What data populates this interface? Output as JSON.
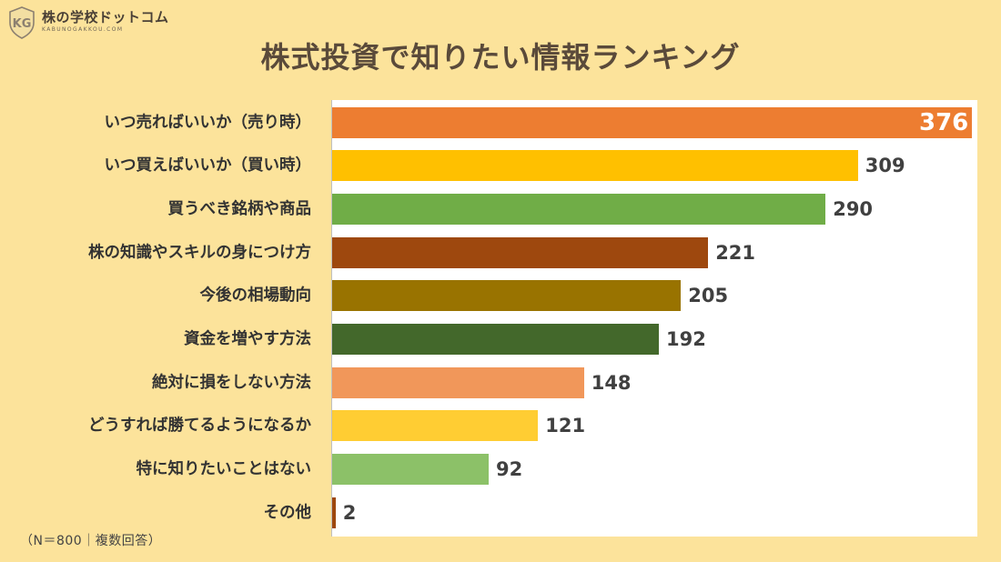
{
  "logo": {
    "mark": "KG",
    "name": "株の学校ドットコム",
    "subtitle": "KABUNOGAKKOU.COM"
  },
  "chart_data": {
    "type": "bar",
    "orientation": "horizontal",
    "title": "株式投資で知りたい情報ランキング",
    "categories": [
      "いつ売ればいいか（売り時）",
      "いつ買えばいいか（買い時）",
      "買うべき銘柄や商品",
      "株の知識やスキルの身につけ方",
      "今後の相場動向",
      "資金を増やす方法",
      "絶対に損をしない方法",
      "どうすれば勝てるようになるか",
      "特に知りたいことはない",
      "その他"
    ],
    "values": [
      376,
      309,
      290,
      221,
      205,
      192,
      148,
      121,
      92,
      2
    ],
    "labels": [
      "376",
      "309",
      "290",
      "221",
      "205",
      "192",
      "148",
      "121",
      "92",
      "2"
    ],
    "colors": [
      "#ed7d31",
      "#ffc000",
      "#70ad47",
      "#9e480e",
      "#997300",
      "#43682b",
      "#f1975a",
      "#ffcd33",
      "#8cc168",
      "#9e480e"
    ],
    "xlim": [
      0,
      376
    ],
    "grid": false,
    "legend": "none"
  },
  "footnote": "（N＝800｜複数回答）"
}
